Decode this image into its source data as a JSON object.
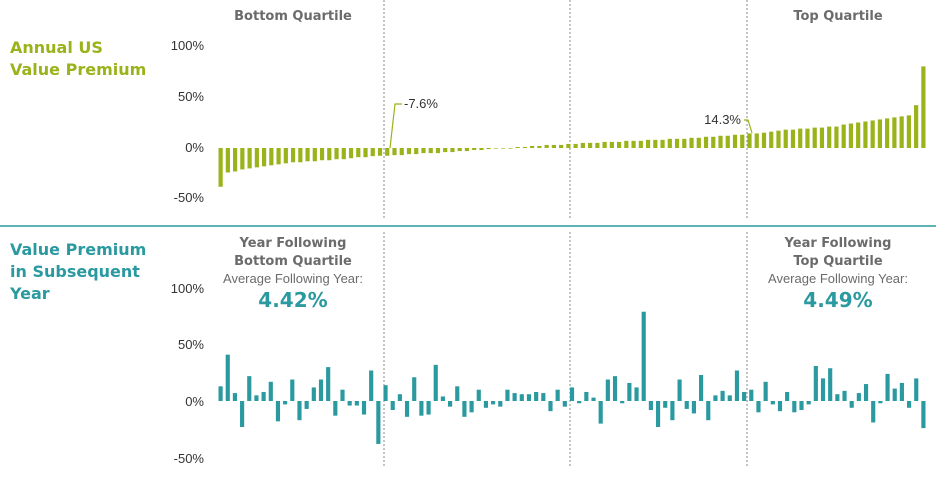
{
  "colors": {
    "top_series": "#9ab31a",
    "bottom_series": "#2a9aa0",
    "divider": "#2a9aa0",
    "guide": "#8a8a8a",
    "header_text": "#6b6b6b"
  },
  "top_panel": {
    "title_line1": "Annual US",
    "title_line2": "Value Premium",
    "bottom_header": "Bottom Quartile",
    "top_header": "Top Quartile",
    "bottom_annotation": "-7.6%",
    "top_annotation": "14.3%"
  },
  "bottom_panel": {
    "title_line1": "Value Premium",
    "title_line2": "in Subsequent",
    "title_line3": "Year",
    "left_head_line1": "Year Following",
    "left_head_line2": "Bottom Quartile",
    "left_avg_label": "Average Following Year:",
    "left_avg_value": "4.42%",
    "right_head_line1": "Year Following",
    "right_head_line2": "Top Quartile",
    "right_avg_label": "Average Following Year:",
    "right_avg_value": "4.49%"
  },
  "chart_data": [
    {
      "type": "bar",
      "title": "Annual US Value Premium",
      "ylim": [
        -50,
        100
      ],
      "yticks": [
        "100%",
        "50%",
        "0%",
        "-50%"
      ],
      "grid": false,
      "annotations": [
        {
          "text": "-7.6%",
          "value": -7.6
        },
        {
          "text": "14.3%",
          "value": 14.3
        }
      ],
      "values": [
        -38,
        -24,
        -23,
        -21,
        -20,
        -19,
        -18,
        -17,
        -16,
        -15,
        -14,
        -14,
        -13,
        -13,
        -12,
        -12,
        -11,
        -11,
        -10,
        -9,
        -9,
        -8,
        -7.6,
        -7.6,
        -7,
        -7,
        -6,
        -6,
        -5,
        -5,
        -5,
        -4,
        -4,
        -3,
        -3,
        -2,
        -2,
        -1,
        0,
        0,
        0,
        1,
        1,
        2,
        2,
        3,
        3,
        3,
        4,
        4,
        5,
        5,
        5,
        6,
        6,
        6,
        7,
        7,
        7,
        8,
        8,
        8,
        9,
        9,
        9,
        10,
        10,
        11,
        11,
        12,
        12,
        13,
        13,
        14.3,
        14.3,
        15,
        16,
        17,
        18,
        18,
        19,
        19,
        20,
        20,
        21,
        21,
        23,
        24,
        25,
        26,
        27,
        28,
        29,
        30,
        31,
        32,
        42,
        80
      ]
    },
    {
      "type": "bar",
      "title": "Value Premium in Subsequent Year",
      "ylim": [
        -50,
        100
      ],
      "yticks": [
        "100%",
        "50%",
        "0%",
        "-50%"
      ],
      "grid": false,
      "annotations": [
        {
          "text": "Average Following Year: 4.42%",
          "value": 4.42
        },
        {
          "text": "Average Following Year: 4.49%",
          "value": 4.49
        }
      ],
      "values": [
        13,
        41,
        7,
        -23,
        22,
        5,
        8,
        17,
        -18,
        -3,
        19,
        -17,
        -7,
        12,
        19,
        30,
        -13,
        10,
        -4,
        -4,
        -12,
        27,
        -38,
        14,
        -8,
        6,
        -14,
        21,
        -13,
        -12,
        32,
        4,
        -5,
        13,
        -14,
        -10,
        10,
        -6,
        -3,
        -5,
        10,
        7,
        6,
        6,
        8,
        7,
        -9,
        10,
        -5,
        12,
        -2,
        8,
        3,
        -20,
        19,
        22,
        -2,
        16,
        12,
        79,
        -8,
        -23,
        -6,
        -17,
        19,
        -7,
        -11,
        23,
        -17,
        5,
        9,
        5,
        27,
        8,
        10,
        -10,
        17,
        -3,
        -9,
        8,
        -10,
        -8,
        -3,
        31,
        20,
        29,
        6,
        9,
        -6,
        7,
        15,
        -19,
        -2,
        24,
        11,
        16,
        -6,
        20,
        -24
      ]
    }
  ]
}
